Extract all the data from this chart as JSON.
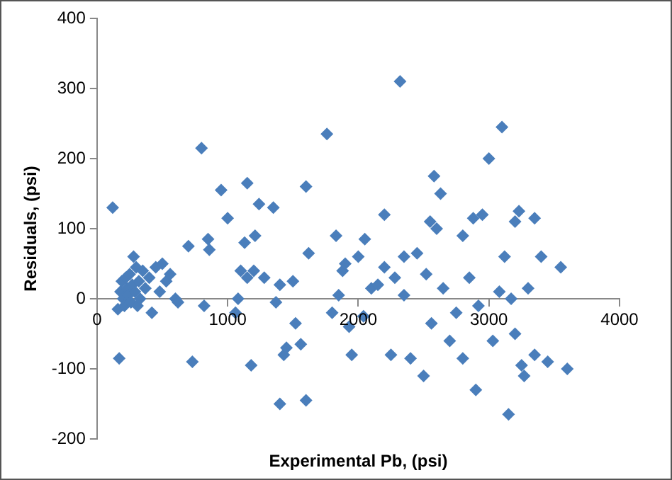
{
  "chart_data": {
    "type": "scatter",
    "xlabel": "Experimental Pb, (psi)",
    "ylabel": "Residuals, (psi)",
    "xlim": [
      0,
      4000
    ],
    "xticks": [
      0,
      1000,
      2000,
      3000,
      4000
    ],
    "ylim": [
      -200,
      400
    ],
    "yticks": [
      -200,
      -100,
      0,
      100,
      200,
      300,
      400
    ],
    "grid": false,
    "legend": false,
    "marker": "diamond",
    "series": [
      {
        "color": "#4a7ebb",
        "x": [
          120,
          160,
          170,
          180,
          190,
          200,
          210,
          220,
          230,
          240,
          250,
          260,
          270,
          280,
          290,
          300,
          310,
          320,
          330,
          350,
          370,
          400,
          420,
          450,
          480,
          500,
          530,
          560,
          600,
          620,
          700,
          730,
          800,
          820,
          850,
          860,
          950,
          1000,
          1060,
          1080,
          1100,
          1130,
          1150,
          1150,
          1180,
          1200,
          1210,
          1240,
          1280,
          1350,
          1370,
          1400,
          1400,
          1430,
          1450,
          1500,
          1520,
          1560,
          1600,
          1600,
          1620,
          1760,
          1800,
          1830,
          1850,
          1880,
          1900,
          1930,
          1950,
          2000,
          2040,
          2050,
          2100,
          2150,
          2200,
          2200,
          2250,
          2280,
          2320,
          2350,
          2350,
          2400,
          2450,
          2500,
          2520,
          2550,
          2560,
          2580,
          2600,
          2630,
          2650,
          2700,
          2750,
          2800,
          2800,
          2850,
          2880,
          2900,
          2920,
          2950,
          3000,
          3030,
          3080,
          3100,
          3120,
          3150,
          3170,
          3200,
          3200,
          3230,
          3250,
          3270,
          3300,
          3350,
          3350,
          3400,
          3450,
          3550,
          3600
        ],
        "values": [
          130,
          -15,
          -85,
          10,
          25,
          0,
          -10,
          30,
          15,
          5,
          35,
          -5,
          20,
          60,
          10,
          45,
          -10,
          25,
          0,
          40,
          15,
          30,
          -20,
          45,
          10,
          50,
          25,
          35,
          0,
          -5,
          75,
          -90,
          215,
          -10,
          85,
          70,
          155,
          115,
          -20,
          0,
          40,
          80,
          30,
          165,
          -95,
          40,
          90,
          135,
          30,
          130,
          -5,
          -150,
          20,
          -80,
          -70,
          25,
          -35,
          -65,
          -145,
          160,
          65,
          235,
          -20,
          90,
          5,
          40,
          50,
          -40,
          -80,
          60,
          -25,
          85,
          15,
          20,
          120,
          45,
          -80,
          30,
          310,
          60,
          5,
          -85,
          65,
          -110,
          35,
          110,
          -35,
          175,
          100,
          150,
          15,
          -60,
          -20,
          90,
          -85,
          30,
          115,
          -130,
          -10,
          120,
          200,
          -60,
          10,
          245,
          60,
          -165,
          0,
          110,
          -50,
          125,
          -95,
          -110,
          15,
          115,
          -80,
          60,
          -90,
          45,
          -100
        ]
      }
    ]
  }
}
